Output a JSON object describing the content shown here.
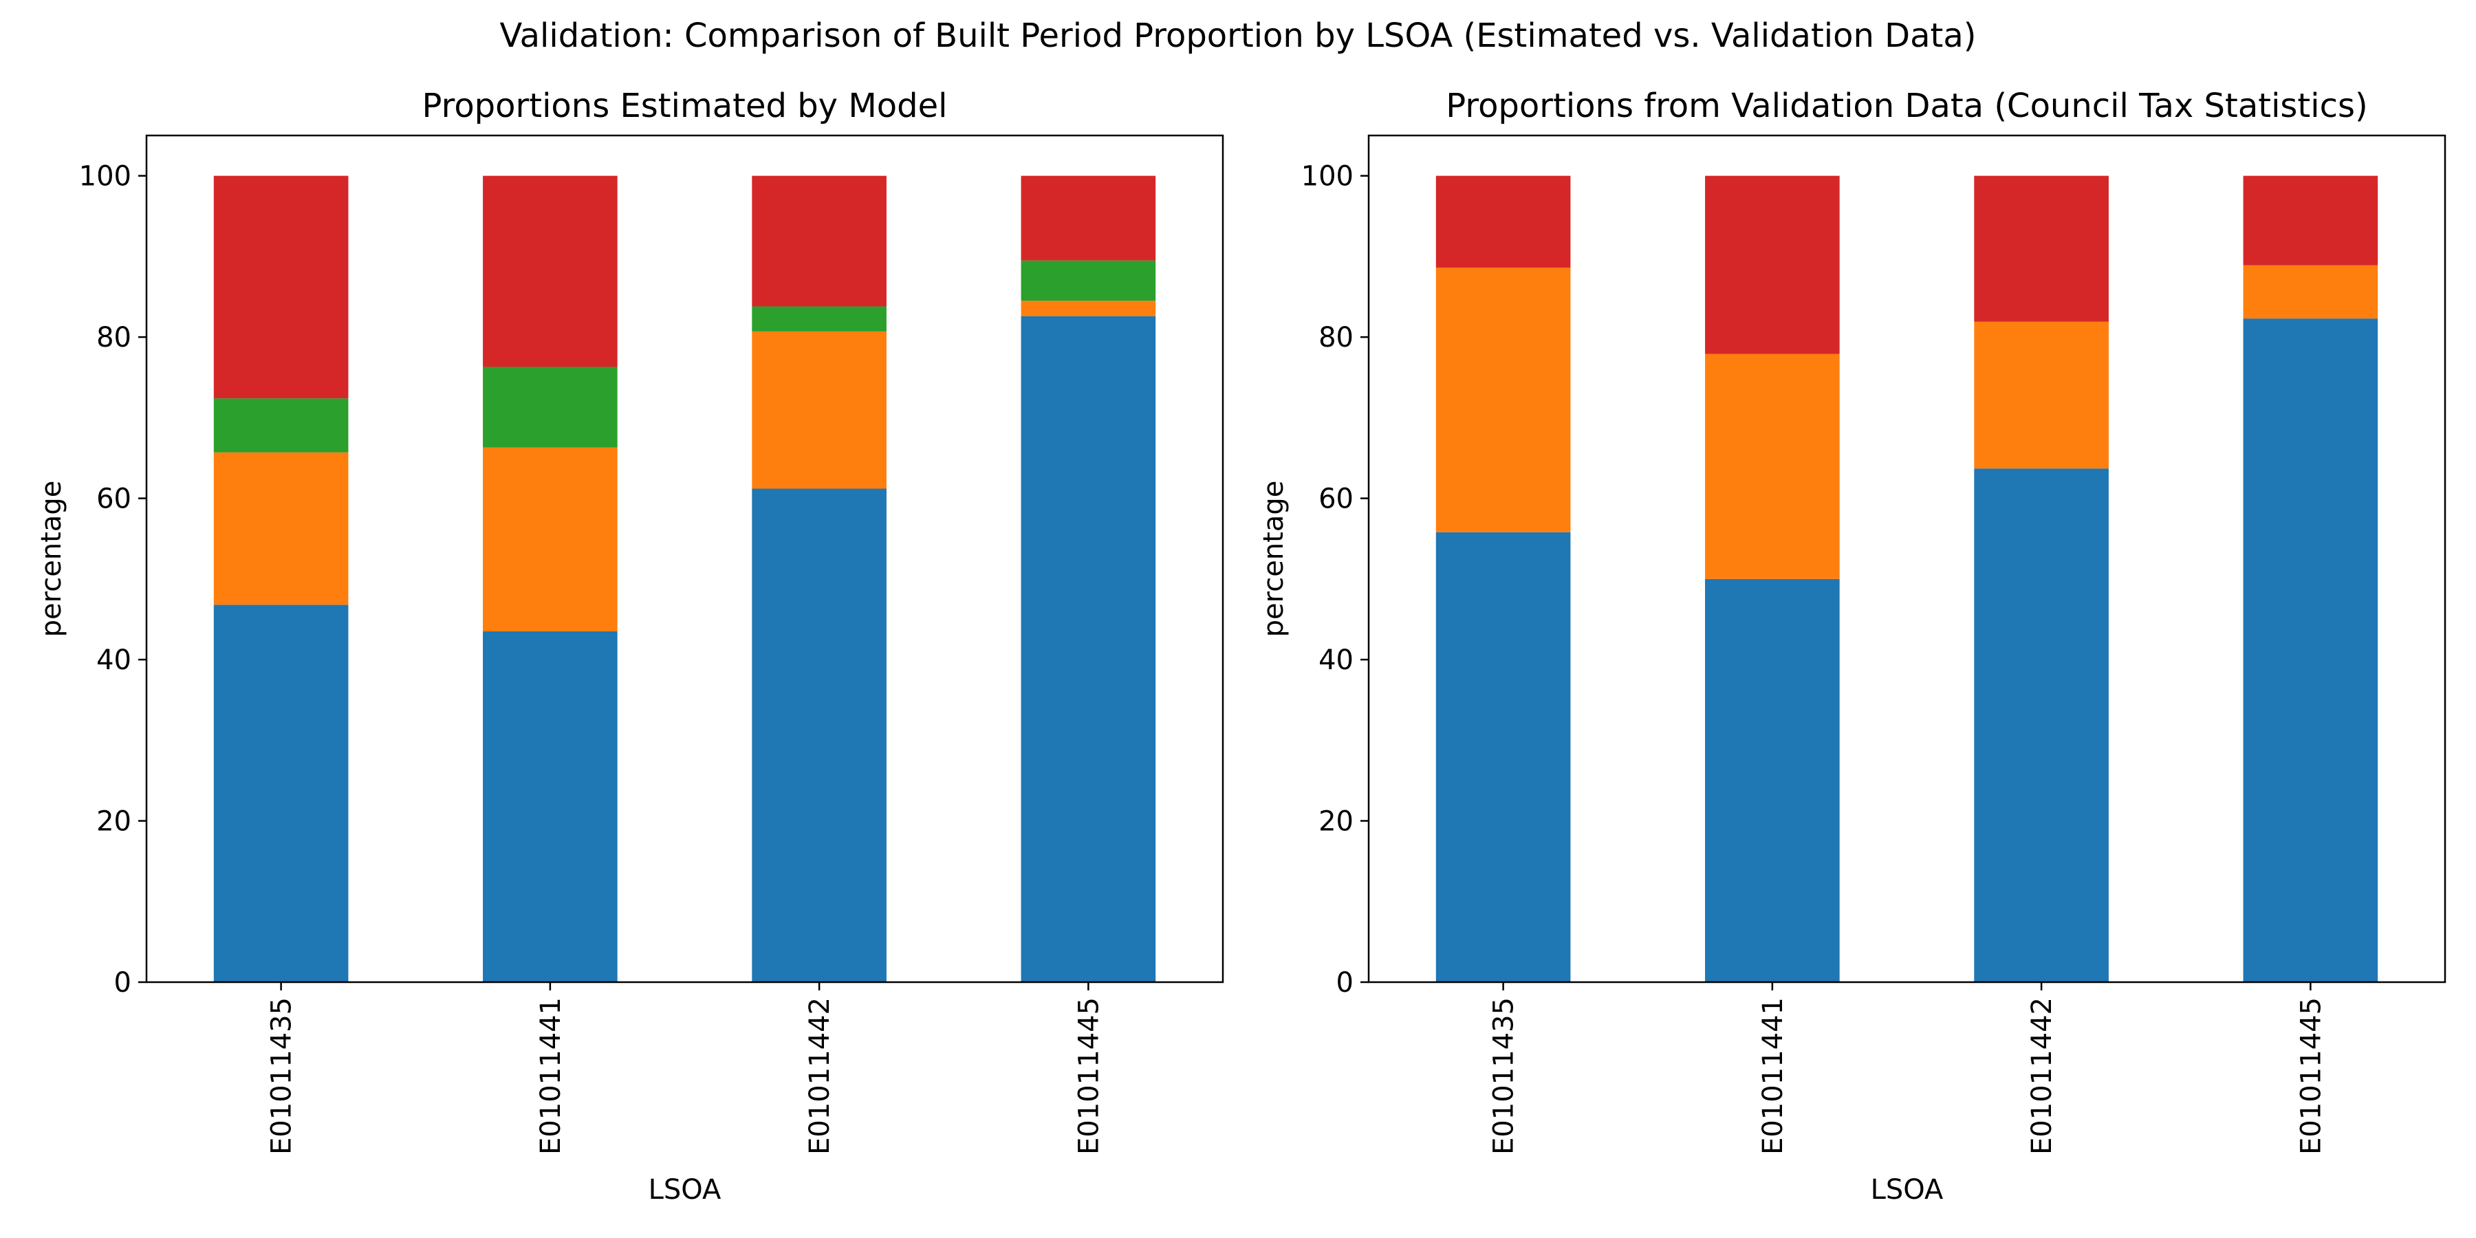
{
  "suptitle": "Validation: Comparison of Built Period Proportion by LSOA (Estimated vs. Validation Data)",
  "colors": [
    "#1f77b4",
    "#ff7f0e",
    "#2ca02c",
    "#d62728"
  ],
  "chart_data": [
    {
      "type": "bar",
      "stacked": true,
      "title": "Proportions Estimated by Model",
      "xlabel": "LSOA",
      "ylabel": "percentage",
      "ylim": [
        0,
        105
      ],
      "yticks": [
        0,
        20,
        40,
        60,
        80,
        100
      ],
      "grid": false,
      "categories": [
        "E01011435",
        "E01011441",
        "E01011442",
        "E01011445"
      ],
      "series": [
        {
          "values": [
            46.8,
            43.5,
            61.2,
            82.6
          ]
        },
        {
          "values": [
            18.9,
            22.8,
            19.5,
            1.9
          ]
        },
        {
          "values": [
            6.7,
            10.0,
            3.1,
            5.0
          ]
        },
        {
          "values": [
            27.6,
            23.7,
            16.2,
            10.5
          ]
        }
      ]
    },
    {
      "type": "bar",
      "stacked": true,
      "title": "Proportions from Validation Data (Council Tax Statistics)",
      "xlabel": "LSOA",
      "ylabel": "percentage",
      "ylim": [
        0,
        105
      ],
      "yticks": [
        0,
        20,
        40,
        60,
        80,
        100
      ],
      "grid": false,
      "categories": [
        "E01011435",
        "E01011441",
        "E01011442",
        "E01011445"
      ],
      "series": [
        {
          "values": [
            55.8,
            50.0,
            63.7,
            82.3
          ]
        },
        {
          "values": [
            32.8,
            27.9,
            18.2,
            6.6
          ]
        },
        {
          "values": [
            0,
            0,
            0,
            0
          ]
        },
        {
          "values": [
            11.4,
            22.1,
            18.1,
            11.1
          ]
        }
      ]
    }
  ]
}
